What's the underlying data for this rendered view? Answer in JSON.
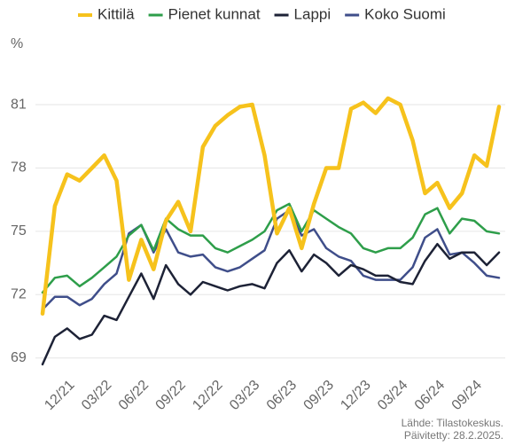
{
  "chart_data": {
    "type": "line",
    "y_label": "%",
    "categories": [
      null,
      null,
      "12/21",
      null,
      null,
      "03/22",
      null,
      null,
      "06/22",
      null,
      null,
      "09/22",
      null,
      null,
      "12/22",
      null,
      null,
      "03/23",
      null,
      null,
      "06/23",
      null,
      null,
      "09/23",
      null,
      null,
      "12/23",
      null,
      null,
      "03/24",
      null,
      null,
      "06/24",
      null,
      null,
      "09/24",
      null,
      null
    ],
    "series": [
      {
        "name": "Kittilä",
        "color": "#f6c21c",
        "values": [
          71.1,
          76.2,
          77.7,
          77.4,
          78.0,
          78.6,
          77.4,
          72.7,
          74.6,
          73.2,
          75.5,
          76.4,
          75.0,
          79.0,
          80.0,
          80.5,
          80.9,
          81.0,
          78.6,
          74.9,
          76.1,
          74.2,
          76.3,
          78.0,
          78.0,
          80.8,
          81.1,
          80.6,
          81.3,
          81.0,
          79.3,
          76.8,
          77.3,
          76.1,
          76.8,
          78.6,
          78.1,
          80.9
        ]
      },
      {
        "name": "Pienet kunnat",
        "color": "#2e9e4a",
        "values": [
          72.1,
          72.8,
          72.9,
          72.4,
          72.8,
          73.3,
          73.8,
          74.8,
          75.3,
          74.1,
          75.6,
          75.1,
          74.8,
          74.8,
          74.2,
          74.0,
          74.3,
          74.6,
          75.0,
          76.0,
          76.3,
          75.0,
          76.0,
          75.6,
          75.2,
          74.9,
          74.2,
          74.0,
          74.2,
          74.2,
          74.7,
          75.8,
          76.1,
          74.9,
          75.6,
          75.5,
          75.0,
          74.9
        ]
      },
      {
        "name": "Lappi",
        "color": "#1d2236",
        "values": [
          68.7,
          70.0,
          70.4,
          69.9,
          70.1,
          71.0,
          70.8,
          71.9,
          73.0,
          71.8,
          73.4,
          72.5,
          72.0,
          72.6,
          72.4,
          72.2,
          72.4,
          72.5,
          72.3,
          73.5,
          74.1,
          73.1,
          73.9,
          73.5,
          72.9,
          73.4,
          73.2,
          72.9,
          72.9,
          72.6,
          72.5,
          73.6,
          74.4,
          73.7,
          74.0,
          74.0,
          73.4,
          74.0
        ]
      },
      {
        "name": "Koko Suomi",
        "color": "#3f4e8a",
        "values": [
          71.3,
          71.9,
          71.9,
          71.5,
          71.8,
          72.5,
          73.0,
          74.9,
          75.3,
          74.0,
          75.1,
          74.0,
          73.8,
          73.9,
          73.3,
          73.1,
          73.3,
          73.7,
          74.1,
          75.6,
          76.0,
          74.8,
          75.1,
          74.2,
          73.8,
          73.6,
          72.9,
          72.7,
          72.7,
          72.7,
          73.3,
          74.7,
          75.1,
          73.9,
          74.0,
          73.5,
          72.9,
          72.8
        ]
      }
    ],
    "ylim": [
      68.4,
      81.8
    ],
    "yticks": [
      69,
      72,
      75,
      78,
      81
    ],
    "grid": true,
    "source": [
      "Lähde: Tilastokeskus.",
      "Päivitetty: 28.2.2025."
    ]
  }
}
